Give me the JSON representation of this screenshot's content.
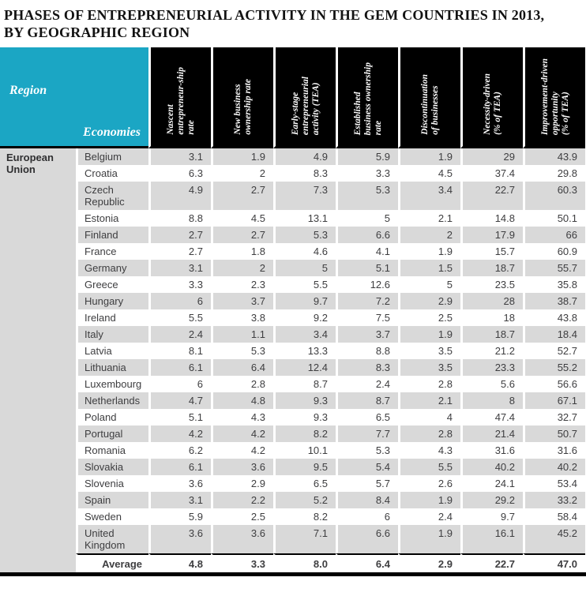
{
  "header": {
    "title_line1": "PHASES OF ENTREPRENEURIAL ACTIVITY IN THE GEM COUNTRIES IN 2013,",
    "title_line2": "BY GEOGRAPHIC REGION"
  },
  "colors": {
    "teal_accent": "#1ba6c4",
    "header_background": "#000000",
    "row_shade": "#d9d9d9",
    "text": "#3e3e40"
  },
  "chart_data": {
    "type": "table",
    "title": "PHASES OF ENTREPRENEURIAL ACTIVITY IN THE GEM COUNTRIES IN 2013, BY GEOGRAPHIC REGION",
    "region_column_header": "Region",
    "economies_column_header": "Economies",
    "region_group": "European Union",
    "columns": [
      "Nascent\nentrepreneur-ship\nrate",
      "New business\nownership rate",
      "Early-stage\nentrepreneurial\nactivity (TEA)",
      "Established\nbusiness ownership\nrate",
      "Discontinuation\nof businesses",
      "Necessity-driven\n(% of TEA)",
      "Improvement-driven\nopportunity\n(% of TEA)"
    ],
    "rows": [
      {
        "economy": "Belgium",
        "values": [
          "3.1",
          "1.9",
          "4.9",
          "5.9",
          "1.9",
          "29",
          "43.9"
        ]
      },
      {
        "economy": "Croatia",
        "values": [
          "6.3",
          "2",
          "8.3",
          "3.3",
          "4.5",
          "37.4",
          "29.8"
        ]
      },
      {
        "economy": "Czech Republic",
        "values": [
          "4.9",
          "2.7",
          "7.3",
          "5.3",
          "3.4",
          "22.7",
          "60.3"
        ]
      },
      {
        "economy": "Estonia",
        "values": [
          "8.8",
          "4.5",
          "13.1",
          "5",
          "2.1",
          "14.8",
          "50.1"
        ]
      },
      {
        "economy": "Finland",
        "values": [
          "2.7",
          "2.7",
          "5.3",
          "6.6",
          "2",
          "17.9",
          "66"
        ]
      },
      {
        "economy": "France",
        "values": [
          "2.7",
          "1.8",
          "4.6",
          "4.1",
          "1.9",
          "15.7",
          "60.9"
        ]
      },
      {
        "economy": "Germany",
        "values": [
          "3.1",
          "2",
          "5",
          "5.1",
          "1.5",
          "18.7",
          "55.7"
        ]
      },
      {
        "economy": "Greece",
        "values": [
          "3.3",
          "2.3",
          "5.5",
          "12.6",
          "5",
          "23.5",
          "35.8"
        ]
      },
      {
        "economy": "Hungary",
        "values": [
          "6",
          "3.7",
          "9.7",
          "7.2",
          "2.9",
          "28",
          "38.7"
        ]
      },
      {
        "economy": "Ireland",
        "values": [
          "5.5",
          "3.8",
          "9.2",
          "7.5",
          "2.5",
          "18",
          "43.8"
        ]
      },
      {
        "economy": "Italy",
        "values": [
          "2.4",
          "1.1",
          "3.4",
          "3.7",
          "1.9",
          "18.7",
          "18.4"
        ]
      },
      {
        "economy": "Latvia",
        "values": [
          "8.1",
          "5.3",
          "13.3",
          "8.8",
          "3.5",
          "21.2",
          "52.7"
        ]
      },
      {
        "economy": "Lithuania",
        "values": [
          "6.1",
          "6.4",
          "12.4",
          "8.3",
          "3.5",
          "23.3",
          "55.2"
        ]
      },
      {
        "economy": "Luxembourg",
        "values": [
          "6",
          "2.8",
          "8.7",
          "2.4",
          "2.8",
          "5.6",
          "56.6"
        ]
      },
      {
        "economy": "Netherlands",
        "values": [
          "4.7",
          "4.8",
          "9.3",
          "8.7",
          "2.1",
          "8",
          "67.1"
        ]
      },
      {
        "economy": "Poland",
        "values": [
          "5.1",
          "4.3",
          "9.3",
          "6.5",
          "4",
          "47.4",
          "32.7"
        ]
      },
      {
        "economy": "Portugal",
        "values": [
          "4.2",
          "4.2",
          "8.2",
          "7.7",
          "2.8",
          "21.4",
          "50.7"
        ]
      },
      {
        "economy": "Romania",
        "values": [
          "6.2",
          "4.2",
          "10.1",
          "5.3",
          "4.3",
          "31.6",
          "31.6"
        ]
      },
      {
        "economy": "Slovakia",
        "values": [
          "6.1",
          "3.6",
          "9.5",
          "5.4",
          "5.5",
          "40.2",
          "40.2"
        ]
      },
      {
        "economy": "Slovenia",
        "values": [
          "3.6",
          "2.9",
          "6.5",
          "5.7",
          "2.6",
          "24.1",
          "53.4"
        ]
      },
      {
        "economy": "Spain",
        "values": [
          "3.1",
          "2.2",
          "5.2",
          "8.4",
          "1.9",
          "29.2",
          "33.2"
        ]
      },
      {
        "economy": "Sweden",
        "values": [
          "5.9",
          "2.5",
          "8.2",
          "6",
          "2.4",
          "9.7",
          "58.4"
        ]
      },
      {
        "economy": "United Kingdom",
        "values": [
          "3.6",
          "3.6",
          "7.1",
          "6.6",
          "1.9",
          "16.1",
          "45.2"
        ]
      }
    ],
    "average_label": "Average",
    "average_values": [
      "4.8",
      "3.3",
      "8.0",
      "6.4",
      "2.9",
      "22.7",
      "47.0"
    ]
  }
}
